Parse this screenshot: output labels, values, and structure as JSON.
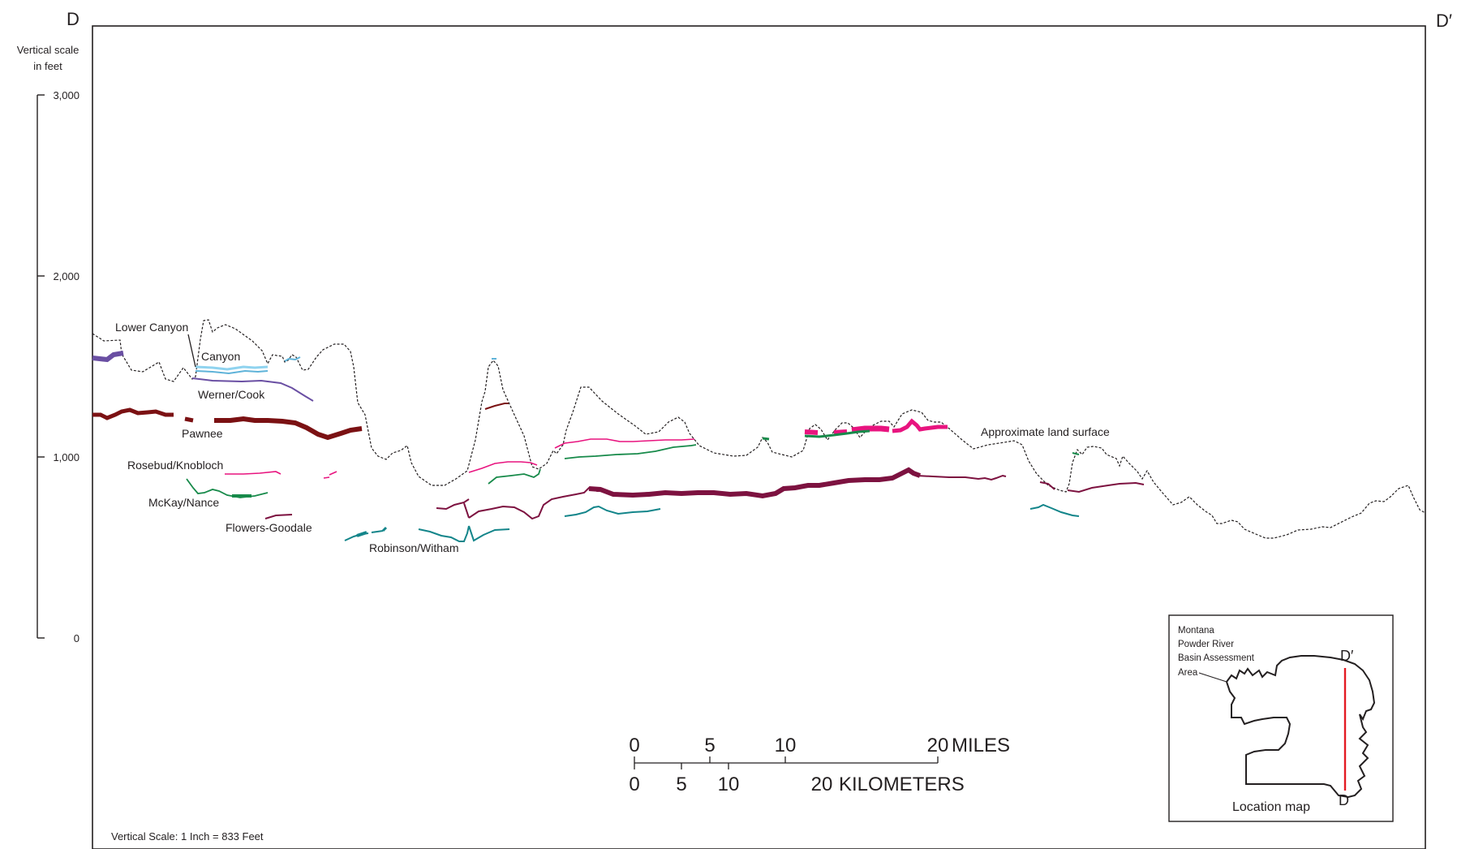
{
  "section": {
    "start_label": "D",
    "end_label": "D′"
  },
  "vertical_scale": {
    "title_line1": "Vertical scale",
    "title_line2": "in feet",
    "ticks": [
      {
        "value": 3000,
        "label": "3,000"
      },
      {
        "value": 2000,
        "label": "2,000"
      },
      {
        "value": 1000,
        "label": "1,000"
      },
      {
        "value": 0,
        "label": "0"
      }
    ],
    "footnote": "Vertical Scale: 1 Inch = 833 Feet"
  },
  "units": [
    {
      "name": "Lower Canyon",
      "color": "#5fb3d9"
    },
    {
      "name": "Canyon",
      "color": "#8fd3ef"
    },
    {
      "name": "Werner/Cook",
      "color": "#6a4fa3"
    },
    {
      "name": "Pawnee",
      "color": "#7b1113"
    },
    {
      "name": "Rosebud/Knobloch",
      "color": "#e8147f"
    },
    {
      "name": "McKay/Nance",
      "color": "#178a4a"
    },
    {
      "name": "Flowers-Goodale",
      "color": "#7d1240"
    },
    {
      "name": "Robinson/Witham",
      "color": "#13858a"
    }
  ],
  "land_surface_label": "Approximate land surface",
  "bar_scale": {
    "miles_ticks": [
      "0",
      "5",
      "10",
      "20"
    ],
    "miles_unit": "MILES",
    "km_ticks": [
      "0",
      "5",
      "10",
      "20"
    ],
    "km_unit": "KILOMETERS"
  },
  "location_map": {
    "area_label_lines": [
      "Montana",
      "Powder River",
      "Basin Assessment",
      "Area"
    ],
    "top_label": "D′",
    "bottom_label": "D",
    "caption": "Location map",
    "line_color": "#e31b23"
  }
}
